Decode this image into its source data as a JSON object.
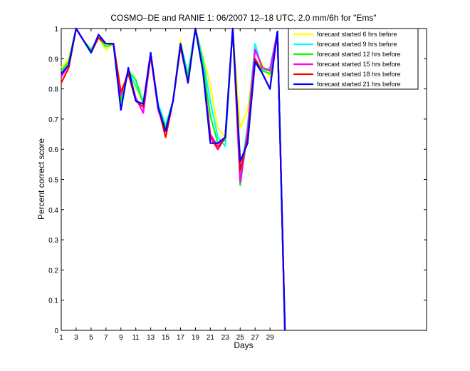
{
  "chart_data": {
    "type": "line",
    "title": "COSMO–DE and RANIE 1: 06/2007 12–18 UTC, 2.0 mm/6h for \"Ems\"",
    "xlabel": "Days",
    "ylabel": "Percent correct score",
    "xlim": [
      1,
      50
    ],
    "ylim": [
      0,
      1
    ],
    "xticks": [
      1,
      3,
      5,
      7,
      9,
      11,
      13,
      15,
      17,
      19,
      21,
      23,
      25,
      27,
      29
    ],
    "yticks": [
      0,
      0.1,
      0.2,
      0.3,
      0.4,
      0.5,
      0.6,
      0.7,
      0.8,
      0.9,
      1
    ],
    "grid": false,
    "legend_position": "top-right",
    "x": [
      1,
      2,
      3,
      4,
      5,
      6,
      7,
      8,
      9,
      10,
      11,
      12,
      13,
      14,
      15,
      16,
      17,
      18,
      19,
      20,
      21,
      22,
      23,
      24,
      25,
      26,
      27,
      28,
      29,
      30,
      31
    ],
    "series": [
      {
        "name": "forecast started 6 hrs before",
        "color": "#ffff00",
        "values": [
          0.87,
          0.9,
          1.0,
          0.96,
          0.92,
          0.97,
          0.93,
          0.95,
          0.75,
          0.86,
          0.8,
          0.76,
          0.91,
          0.75,
          0.67,
          0.76,
          0.96,
          0.84,
          1.0,
          0.91,
          0.81,
          0.67,
          0.64,
          1.0,
          0.67,
          0.73,
          0.93,
          0.88,
          0.84,
          0.99,
          0.0
        ]
      },
      {
        "name": "forecast started 9 hrs before",
        "color": "#00ffff",
        "values": [
          0.86,
          0.89,
          1.0,
          0.96,
          0.93,
          0.97,
          0.94,
          0.95,
          0.77,
          0.86,
          0.81,
          0.76,
          0.91,
          0.75,
          0.68,
          0.76,
          0.95,
          0.85,
          1.0,
          0.9,
          0.76,
          0.64,
          0.61,
          1.0,
          0.5,
          0.68,
          0.95,
          0.86,
          0.87,
          0.99,
          0.0
        ]
      },
      {
        "name": "forecast started 12 hrs before",
        "color": "#00ff00",
        "values": [
          0.86,
          0.89,
          1.0,
          0.96,
          0.93,
          0.97,
          0.94,
          0.95,
          0.76,
          0.86,
          0.83,
          0.75,
          0.91,
          0.74,
          0.67,
          0.76,
          0.94,
          0.84,
          1.0,
          0.88,
          0.71,
          0.62,
          0.63,
          1.0,
          0.48,
          0.66,
          0.9,
          0.86,
          0.85,
          0.99,
          0.0
        ]
      },
      {
        "name": "forecast started 15 hrs before",
        "color": "#ff00ff",
        "values": [
          0.84,
          0.88,
          1.0,
          0.96,
          0.92,
          0.97,
          0.95,
          0.95,
          0.78,
          0.86,
          0.77,
          0.72,
          0.91,
          0.73,
          0.66,
          0.76,
          0.94,
          0.82,
          1.0,
          0.86,
          0.65,
          0.61,
          0.64,
          1.0,
          0.49,
          0.66,
          0.93,
          0.87,
          0.86,
          0.99,
          0.0
        ]
      },
      {
        "name": "forecast started 18 hrs before",
        "color": "#ff0000",
        "values": [
          0.82,
          0.87,
          1.0,
          0.96,
          0.92,
          0.97,
          0.95,
          0.95,
          0.79,
          0.85,
          0.76,
          0.74,
          0.91,
          0.74,
          0.64,
          0.76,
          0.94,
          0.82,
          1.0,
          0.86,
          0.64,
          0.6,
          0.64,
          1.0,
          0.53,
          0.64,
          0.9,
          0.85,
          0.8,
          0.99,
          0.0
        ]
      },
      {
        "name": "forecast started 21 hrs before",
        "color": "#0000ff",
        "values": [
          0.85,
          0.88,
          1.0,
          0.96,
          0.92,
          0.98,
          0.95,
          0.95,
          0.73,
          0.87,
          0.76,
          0.75,
          0.92,
          0.74,
          0.66,
          0.76,
          0.95,
          0.82,
          1.0,
          0.86,
          0.62,
          0.62,
          0.64,
          1.0,
          0.56,
          0.62,
          0.89,
          0.85,
          0.8,
          0.99,
          0.0
        ]
      }
    ]
  }
}
